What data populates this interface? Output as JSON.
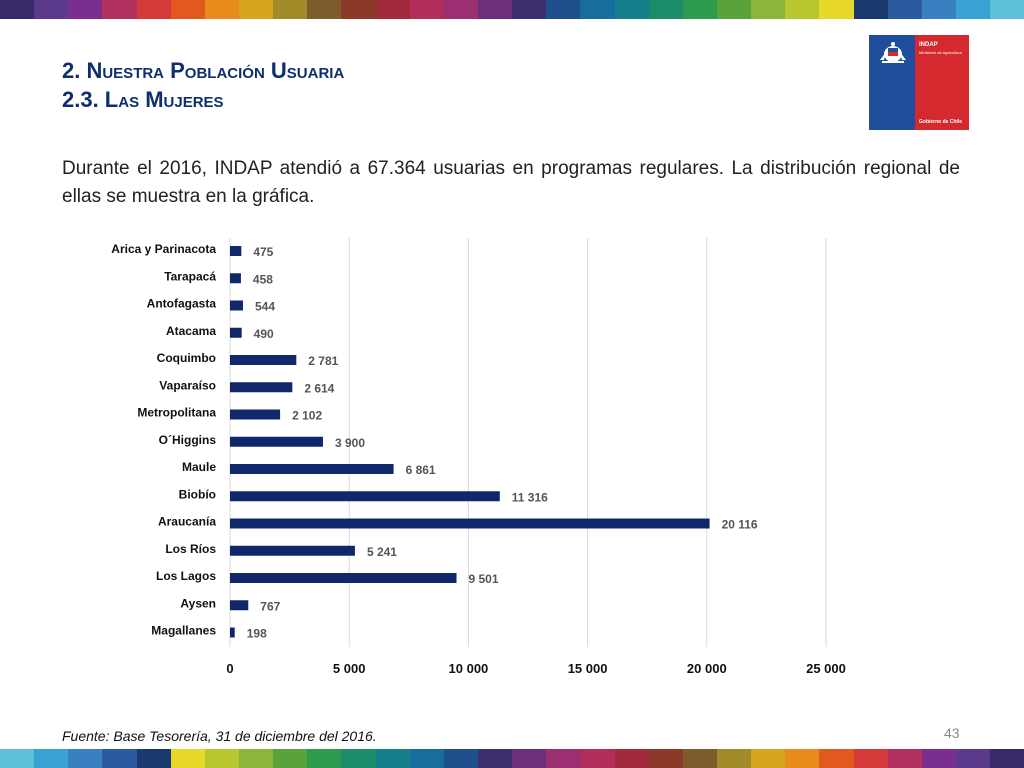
{
  "stripe_colors": [
    "#3b2a6b",
    "#5b3a8c",
    "#7a2f8f",
    "#b1305f",
    "#d53a3a",
    "#e2581f",
    "#e98a1c",
    "#d8a41e",
    "#a38a28",
    "#7c5c2b",
    "#8b3a2a",
    "#a32a3a",
    "#b22d5c",
    "#9c2e72",
    "#6b2f7c",
    "#3d2f6f",
    "#1e4e8c",
    "#176e9e",
    "#13808c",
    "#1b8b6a",
    "#2e9c4e",
    "#5aa33a",
    "#8ab73a",
    "#b8c730",
    "#e7d82a",
    "#1a3a6e",
    "#2a5aa0",
    "#3a7fc0",
    "#37a2d3",
    "#5ec1dc"
  ],
  "header": {
    "title_line1": "2. Nuestra Población Usuaria",
    "title_line2": "2.3. Las Mujeres",
    "title_color": "#0d2f6e"
  },
  "logo": {
    "name": "INDAP",
    "subtitle": "Ministerio de Agricultura",
    "footer": "Gobierno de Chile",
    "blue": "#1f4f9c",
    "red": "#d42a2f"
  },
  "intro_text": "Durante el 2016, INDAP atendió a 67.364 usuarias en programas regulares. La distribución regional de ellas se muestra en la gráfica.",
  "chart_data": {
    "type": "bar",
    "orientation": "horizontal",
    "categories": [
      "Arica y Parinacota",
      "Tarapacá",
      "Antofagasta",
      "Atacama",
      "Coquimbo",
      "Vaparaíso",
      "Metropolitana",
      "O´Higgins",
      "Maule",
      "Biobío",
      "Araucanía",
      "Los Ríos",
      "Los Lagos",
      "Aysen",
      "Magallanes"
    ],
    "values": [
      475,
      458,
      544,
      490,
      2781,
      2614,
      2102,
      3900,
      6861,
      11316,
      20116,
      5241,
      9501,
      767,
      198
    ],
    "value_labels": [
      "475",
      "458",
      "544",
      "490",
      "2 781",
      "2 614",
      "2 102",
      "3 900",
      "6 861",
      "11 316",
      "20 116",
      "5 241",
      "9 501",
      "767",
      "198"
    ],
    "xlim": [
      0,
      25000
    ],
    "xticks": [
      0,
      5000,
      10000,
      15000,
      20000,
      25000
    ],
    "xtick_labels": [
      "0",
      "5 000",
      "10 000",
      "15 000",
      "20 000",
      "25 000"
    ],
    "grid": true,
    "bar_color": "#10286b",
    "title": "",
    "xlabel": "",
    "ylabel": ""
  },
  "source_text": "Fuente: Base Tesorería, 31 de diciembre del 2016.",
  "page_number": "43"
}
